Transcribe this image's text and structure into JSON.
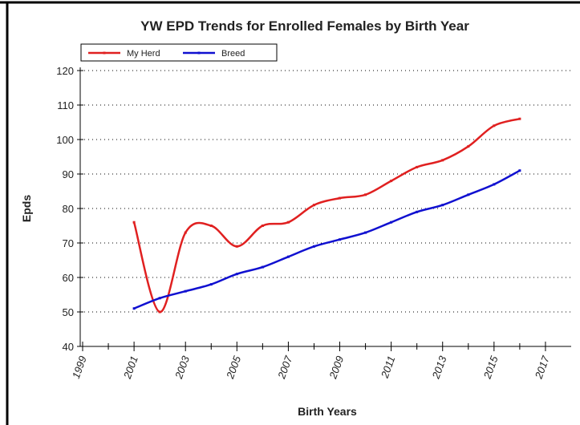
{
  "chart_data": {
    "type": "line",
    "title": "YW EPD Trends for Enrolled Females by Birth Year",
    "x_label": "Birth Years",
    "y_label": "Epds",
    "x": [
      2001,
      2002,
      2003,
      2004,
      2005,
      2006,
      2007,
      2008,
      2009,
      2010,
      2011,
      2012,
      2013,
      2014,
      2015,
      2016
    ],
    "series": [
      {
        "name": "My Herd",
        "color": "#e02020",
        "values": [
          76,
          50,
          73,
          75,
          69,
          75,
          76,
          81,
          83,
          84,
          88,
          92,
          94,
          98,
          104,
          106
        ]
      },
      {
        "name": "Breed",
        "color": "#1010d0",
        "values": [
          51,
          54,
          56,
          58,
          61,
          63,
          66,
          69,
          71,
          73,
          76,
          79,
          81,
          84,
          87,
          91
        ]
      }
    ],
    "xlim": [
      1999,
      2018
    ],
    "xticks": [
      1999,
      2001,
      2003,
      2005,
      2007,
      2009,
      2011,
      2013,
      2015,
      2017
    ],
    "ylim": [
      40,
      120
    ],
    "yticks": [
      40,
      50,
      60,
      70,
      80,
      90,
      100,
      110,
      120
    ],
    "grid": true,
    "legend": "top-left",
    "smooth": true
  }
}
